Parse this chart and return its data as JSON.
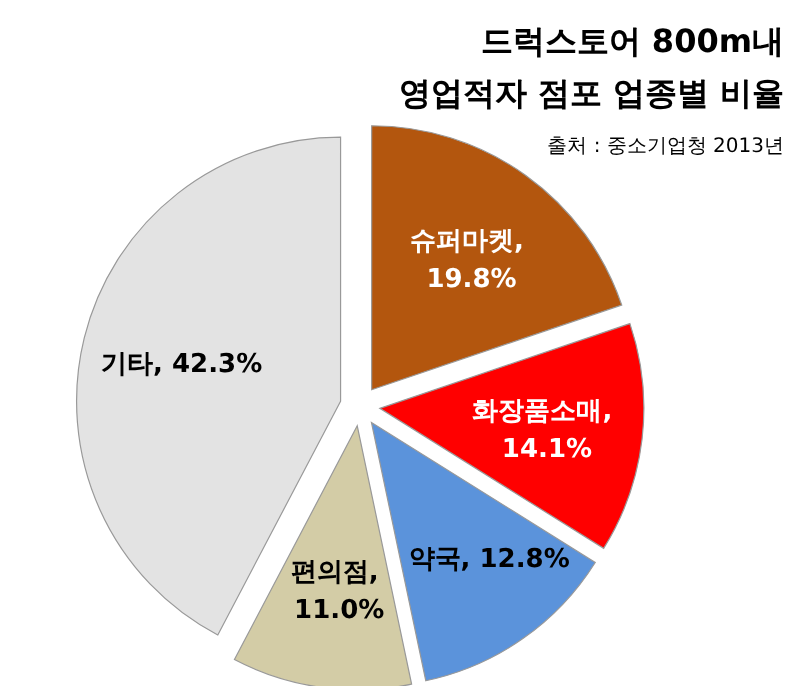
{
  "chart_data": {
    "type": "pie",
    "title": "드럭스토어 800m내\n영업적자 점포 업종별 비율",
    "annotations": [
      "출처 : 중소기업청 2013년"
    ],
    "categories": [
      "슈퍼마켓",
      "화장품소매",
      "약국",
      "편의점",
      "기타"
    ],
    "values": [
      19.8,
      14.1,
      12.8,
      11.0,
      42.3
    ],
    "colors": [
      "#b3560e",
      "#ff0000",
      "#5b93db",
      "#d3cca6",
      "#e3e3e3"
    ],
    "value_labels": [
      ", 19.8%",
      ", 14.1%",
      ", 12.8%",
      ", 11.0%",
      ", 42.3%"
    ]
  }
}
